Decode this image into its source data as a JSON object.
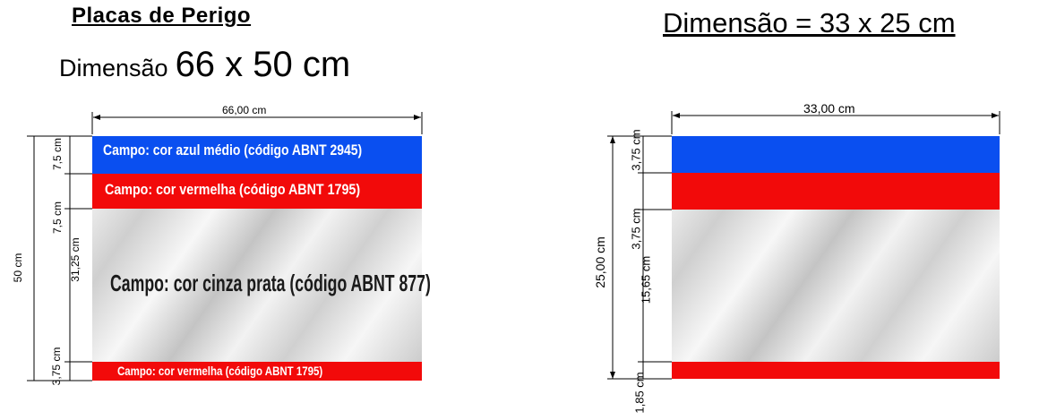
{
  "left": {
    "title": "Placas de Perigo",
    "subtitle_word": "Dimensão",
    "subtitle_dims": "66 x 50 cm",
    "width_label": "66,00 cm",
    "height_label": "50 cm",
    "seg_label_1": "7,5 cm",
    "seg_label_2": "7,5 cm",
    "seg_label_3": "31,25 cm",
    "seg_label_4": "3,75 cm",
    "band_blue_text": "Campo: cor azul médio (código ABNT  2945)",
    "band_red_text": "Campo: cor vermelha  (código ABNT 1795)",
    "band_silver_text": "Campo: cor cinza prata (código ABNT 877)",
    "band_red_bottom_text": "Campo: cor vermelha  (código ABNT 1795)"
  },
  "right": {
    "title": "Dimensão = 33 x 25 cm",
    "width_label": "33,00 cm",
    "height_label": "25,00 cm",
    "seg_label_1": "3,75 cm",
    "seg_label_2": "3,75 cm",
    "seg_label_3": "15,65 cm",
    "seg_label_4": "1,85 cm"
  },
  "colors": {
    "blue": "#0a4ff0",
    "red": "#f20a0a"
  }
}
